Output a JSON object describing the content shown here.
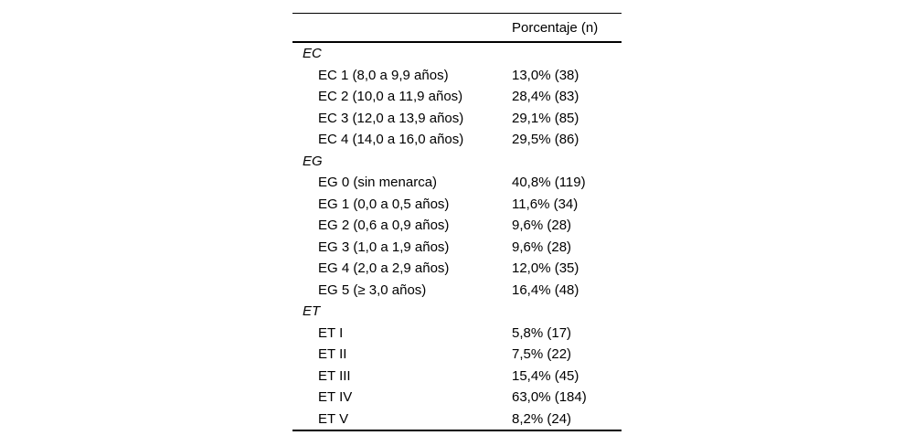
{
  "table": {
    "header": {
      "value_col": "Porcentaje (n)"
    },
    "sections": [
      {
        "label": "EC",
        "rows": [
          {
            "label": "EC 1 (8,0 a 9,9 años)",
            "value": "13,0% (38)"
          },
          {
            "label": "EC 2 (10,0 a 11,9 años)",
            "value": "28,4% (83)"
          },
          {
            "label": "EC 3 (12,0 a 13,9 años)",
            "value": "29,1% (85)"
          },
          {
            "label": "EC 4 (14,0 a 16,0 años)",
            "value": "29,5% (86)"
          }
        ]
      },
      {
        "label": "EG",
        "rows": [
          {
            "label": "EG 0 (sin menarca)",
            "value": "40,8% (119)"
          },
          {
            "label": "EG 1 (0,0 a 0,5 años)",
            "value": "11,6% (34)"
          },
          {
            "label": "EG 2 (0,6 a 0,9 años)",
            "value": "9,6% (28)"
          },
          {
            "label": "EG 3 (1,0 a 1,9 años)",
            "value": "9,6% (28)"
          },
          {
            "label": "EG 4 (2,0 a 2,9 años)",
            "value": "12,0% (35)"
          },
          {
            "label": "EG 5 (≥ 3,0 años)",
            "value": "16,4% (48)"
          }
        ]
      },
      {
        "label": "ET",
        "rows": [
          {
            "label": "ET I",
            "value": "5,8% (17)"
          },
          {
            "label": "ET II",
            "value": "7,5% (22)"
          },
          {
            "label": "ET III",
            "value": "15,4% (45)"
          },
          {
            "label": "ET IV",
            "value": "63,0% (184)"
          },
          {
            "label": "ET V",
            "value": "8,2% (24)"
          }
        ]
      }
    ]
  },
  "colors": {
    "text": "#000000",
    "background": "#ffffff",
    "rule": "#000000"
  },
  "chart_data": {
    "type": "table",
    "title": "",
    "columns": [
      "",
      "Porcentaje (n)"
    ],
    "groups": [
      {
        "name": "EC",
        "categories": [
          "EC 1 (8,0 a 9,9 años)",
          "EC 2 (10,0 a 11,9 años)",
          "EC 3 (12,0 a 13,9 años)",
          "EC 4 (14,0 a 16,0 años)"
        ],
        "percentages": [
          13.0,
          28.4,
          29.1,
          29.5
        ],
        "n": [
          38,
          83,
          85,
          86
        ]
      },
      {
        "name": "EG",
        "categories": [
          "EG 0 (sin menarca)",
          "EG 1 (0,0 a 0,5 años)",
          "EG 2 (0,6 a 0,9 años)",
          "EG 3 (1,0 a 1,9 años)",
          "EG 4 (2,0 a 2,9 años)",
          "EG 5 (≥ 3,0 años)"
        ],
        "percentages": [
          40.8,
          11.6,
          9.6,
          9.6,
          12.0,
          16.4
        ],
        "n": [
          119,
          34,
          28,
          28,
          35,
          48
        ]
      },
      {
        "name": "ET",
        "categories": [
          "ET I",
          "ET II",
          "ET III",
          "ET IV",
          "ET V"
        ],
        "percentages": [
          5.8,
          7.5,
          15.4,
          63.0,
          8.2
        ],
        "n": [
          17,
          22,
          45,
          184,
          24
        ]
      }
    ]
  }
}
